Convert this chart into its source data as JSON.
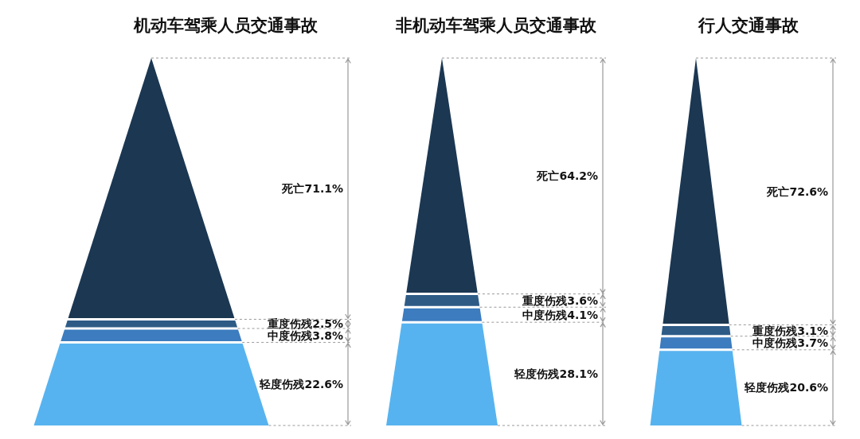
{
  "chart_data": [
    {
      "type": "other",
      "title": "机动车驾乘人员交通事故",
      "categories": [
        "死亡",
        "重度伤残",
        "中度伤残",
        "轻度伤残"
      ],
      "values": [
        71.1,
        2.5,
        3.8,
        22.6
      ],
      "value_labels": [
        "71.1%",
        "2.5%",
        "3.8%",
        "22.6%"
      ],
      "colors": [
        "#1b3752",
        "#2d5b86",
        "#3c7cbf",
        "#57b3ef"
      ]
    },
    {
      "type": "other",
      "title": "非机动车驾乘人员交通事故",
      "categories": [
        "死亡",
        "重度伤残",
        "中度伤残",
        "轻度伤残"
      ],
      "values": [
        64.2,
        3.6,
        4.1,
        28.1
      ],
      "value_labels": [
        "64.2%",
        "3.6%",
        "4.1%",
        "28.1%"
      ],
      "colors": [
        "#1b3752",
        "#2d5b86",
        "#3c7cbf",
        "#57b3ef"
      ]
    },
    {
      "type": "other",
      "title": "行人交通事故",
      "categories": [
        "死亡",
        "重度伤残",
        "中度伤残",
        "轻度伤残"
      ],
      "values": [
        72.6,
        3.1,
        3.7,
        20.6
      ],
      "value_labels": [
        "72.6%",
        "3.1%",
        "3.7%",
        "20.6%"
      ],
      "colors": [
        "#1b3752",
        "#2d5b86",
        "#3c7cbf",
        "#57b3ef"
      ]
    }
  ]
}
